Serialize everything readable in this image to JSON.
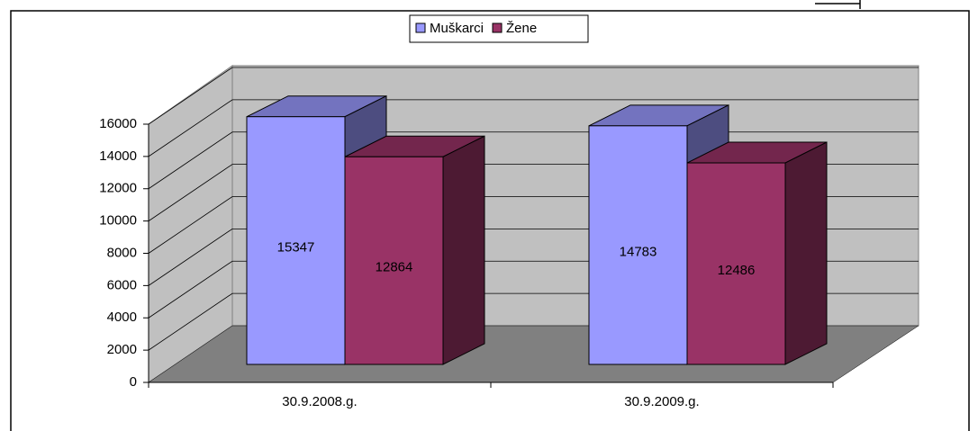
{
  "chart_data": {
    "type": "bar3d",
    "categories": [
      "30.9.2008.g.",
      "30.9.2009.g."
    ],
    "series": [
      {
        "name": "Muškarci",
        "color": "#9999ff",
        "values": [
          15347,
          14783
        ]
      },
      {
        "name": "Žene",
        "color": "#993366",
        "values": [
          12864,
          12486
        ]
      }
    ],
    "ylim": [
      0,
      16000
    ],
    "yticks": [
      0,
      2000,
      4000,
      6000,
      8000,
      10000,
      12000,
      14000,
      16000
    ],
    "grid": true,
    "legend": "top"
  }
}
